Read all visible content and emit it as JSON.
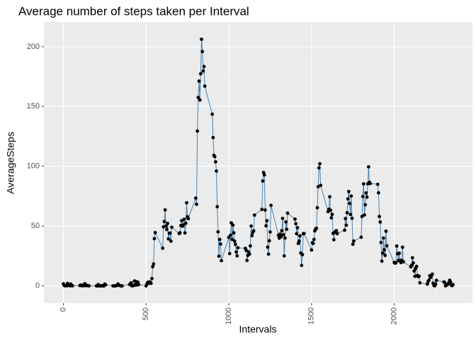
{
  "chart_data": {
    "type": "line",
    "title": "Average number of steps taken per Interval",
    "xlabel": "Intervals",
    "ylabel": "AverageSteps",
    "xlim": [
      -117.75,
      2472.75
    ],
    "ylim": [
      -10.3,
      216.5
    ],
    "xticks": [
      0,
      500,
      1000,
      1500,
      2000
    ],
    "yticks": [
      0,
      50,
      100,
      150,
      200
    ],
    "xminor_ticks": [
      250,
      750,
      1250,
      1750,
      2250
    ],
    "yminor_ticks": [
      25,
      75,
      125,
      175
    ],
    "grid": true,
    "series": [
      {
        "color": "#4682b4",
        "marker_color": "#000000",
        "x": [
          0,
          5,
          10,
          15,
          20,
          25,
          30,
          35,
          40,
          45,
          50,
          55,
          100,
          105,
          110,
          115,
          120,
          125,
          130,
          135,
          140,
          145,
          150,
          155,
          200,
          205,
          210,
          215,
          220,
          225,
          230,
          235,
          240,
          245,
          250,
          255,
          300,
          305,
          310,
          315,
          320,
          325,
          330,
          335,
          340,
          345,
          350,
          355,
          400,
          405,
          410,
          415,
          420,
          425,
          430,
          435,
          440,
          445,
          450,
          455,
          500,
          505,
          510,
          515,
          520,
          525,
          530,
          535,
          540,
          545,
          550,
          555,
          600,
          605,
          610,
          615,
          620,
          625,
          630,
          635,
          640,
          645,
          650,
          655,
          700,
          705,
          710,
          715,
          720,
          725,
          730,
          735,
          740,
          745,
          750,
          755,
          800,
          805,
          810,
          815,
          820,
          825,
          830,
          835,
          840,
          845,
          850,
          855,
          900,
          905,
          910,
          915,
          920,
          925,
          930,
          935,
          940,
          945,
          950,
          955,
          1000,
          1005,
          1010,
          1015,
          1020,
          1025,
          1030,
          1035,
          1040,
          1045,
          1050,
          1055,
          1100,
          1105,
          1110,
          1115,
          1120,
          1125,
          1130,
          1135,
          1140,
          1145,
          1150,
          1155,
          1200,
          1205,
          1210,
          1215,
          1220,
          1225,
          1230,
          1235,
          1240,
          1245,
          1250,
          1255,
          1300,
          1305,
          1310,
          1315,
          1320,
          1325,
          1330,
          1335,
          1340,
          1345,
          1350,
          1355,
          1400,
          1405,
          1410,
          1415,
          1420,
          1425,
          1430,
          1435,
          1440,
          1445,
          1450,
          1455,
          1500,
          1505,
          1510,
          1515,
          1520,
          1525,
          1530,
          1535,
          1540,
          1545,
          1550,
          1555,
          1600,
          1605,
          1610,
          1615,
          1620,
          1625,
          1630,
          1635,
          1640,
          1645,
          1650,
          1655,
          1700,
          1705,
          1710,
          1715,
          1720,
          1725,
          1730,
          1735,
          1740,
          1745,
          1750,
          1755,
          1800,
          1805,
          1810,
          1815,
          1820,
          1825,
          1830,
          1835,
          1840,
          1845,
          1850,
          1855,
          1900,
          1905,
          1910,
          1915,
          1920,
          1925,
          1930,
          1935,
          1940,
          1945,
          1950,
          1955,
          2000,
          2005,
          2010,
          2015,
          2020,
          2025,
          2030,
          2035,
          2040,
          2045,
          2050,
          2055,
          2100,
          2105,
          2110,
          2115,
          2120,
          2125,
          2130,
          2135,
          2140,
          2145,
          2150,
          2155,
          2200,
          2205,
          2210,
          2215,
          2220,
          2225,
          2230,
          2235,
          2240,
          2245,
          2250,
          2255,
          2300,
          2305,
          2310,
          2315,
          2320,
          2325,
          2330,
          2335,
          2340,
          2345,
          2350,
          2355
        ],
        "values": [
          1.7,
          0.3,
          0.1,
          0.2,
          0.1,
          2.1,
          0.5,
          0.9,
          0,
          1.5,
          0.3,
          0.1,
          0.3,
          0.7,
          0.2,
          0.3,
          0,
          1.1,
          1.8,
          0.2,
          0.2,
          0.4,
          0.3,
          0,
          0,
          0,
          1.1,
          0,
          0,
          0.1,
          0,
          0.2,
          0,
          0,
          1.5,
          0.9,
          0,
          0,
          0,
          0,
          0.2,
          0.6,
          1.6,
          0.6,
          0.5,
          0.1,
          0,
          0,
          1.2,
          0.9,
          2.6,
          0,
          0.3,
          0.4,
          4.1,
          0.7,
          3.5,
          0.8,
          3.1,
          1.1,
          0,
          1.6,
          3.0,
          2.2,
          3.3,
          3.0,
          2.1,
          6.1,
          16.0,
          18.3,
          39.5,
          44.5,
          31.5,
          49.3,
          53.8,
          63.5,
          50.0,
          47.1,
          52.2,
          39.3,
          44.0,
          44.2,
          37.4,
          49.0,
          43.8,
          44.4,
          50.5,
          54.5,
          49.9,
          51.0,
          55.7,
          44.3,
          52.3,
          69.5,
          57.8,
          56.2,
          73.4,
          68.2,
          129.4,
          157.5,
          171.2,
          155.4,
          177.3,
          206.2,
          195.9,
          179.6,
          183.4,
          167.0,
          143.5,
          124.0,
          109.1,
          108.1,
          103.7,
          96.0,
          66.2,
          45.2,
          24.8,
          38.8,
          35.0,
          21.1,
          40.6,
          27.0,
          42.4,
          52.7,
          38.9,
          50.8,
          44.3,
          37.4,
          34.7,
          28.3,
          25.1,
          31.9,
          31.4,
          29.7,
          21.3,
          25.5,
          28.4,
          26.5,
          33.4,
          50.0,
          42.0,
          44.6,
          46.0,
          59.2,
          63.9,
          87.7,
          94.8,
          92.8,
          63.4,
          50.2,
          54.5,
          32.4,
          26.5,
          37.7,
          45.1,
          67.3,
          42.3,
          39.9,
          43.3,
          41.0,
          46.2,
          56.4,
          42.8,
          25.1,
          40.0,
          53.5,
          47.3,
          60.8,
          55.8,
          52.0,
          43.6,
          48.7,
          35.5,
          37.5,
          41.8,
          27.5,
          17.1,
          26.1,
          43.6,
          43.8,
          30.0,
          36.1,
          35.5,
          38.8,
          46.0,
          47.8,
          48.1,
          65.3,
          82.9,
          98.7,
          102.1,
          84.0,
          62.1,
          64.1,
          74.5,
          63.2,
          56.9,
          59.8,
          43.9,
          38.6,
          44.7,
          45.5,
          46.2,
          43.7,
          46.6,
          56.3,
          50.7,
          61.2,
          72.7,
          78.9,
          68.9,
          59.7,
          75.1,
          56.5,
          34.8,
          37.5,
          40.7,
          58.0,
          74.7,
          85.3,
          59.3,
          67.8,
          77.7,
          74.2,
          85.3,
          99.5,
          86.6,
          85.6,
          84.9,
          77.8,
          58.0,
          53.4,
          36.3,
          20.7,
          27.4,
          40.0,
          30.2,
          25.5,
          45.7,
          33.5,
          19.6,
          19.0,
          19.3,
          33.3,
          26.8,
          21.2,
          27.3,
          21.3,
          19.5,
          21.3,
          32.3,
          20.2,
          15.9,
          17.2,
          23.5,
          19.2,
          12.5,
          8.0,
          14.7,
          16.3,
          8.7,
          7.8,
          8.1,
          2.6,
          1.5,
          3.7,
          4.8,
          8.5,
          7.1,
          8.7,
          9.8,
          2.2,
          0.3,
          0.1,
          1.6,
          4.6,
          3.3,
          2.8,
          0,
          0.8,
          1.0,
          1.6,
          2.6,
          4.7,
          3.3,
          0.6,
          0.2,
          1.1
        ]
      }
    ]
  }
}
